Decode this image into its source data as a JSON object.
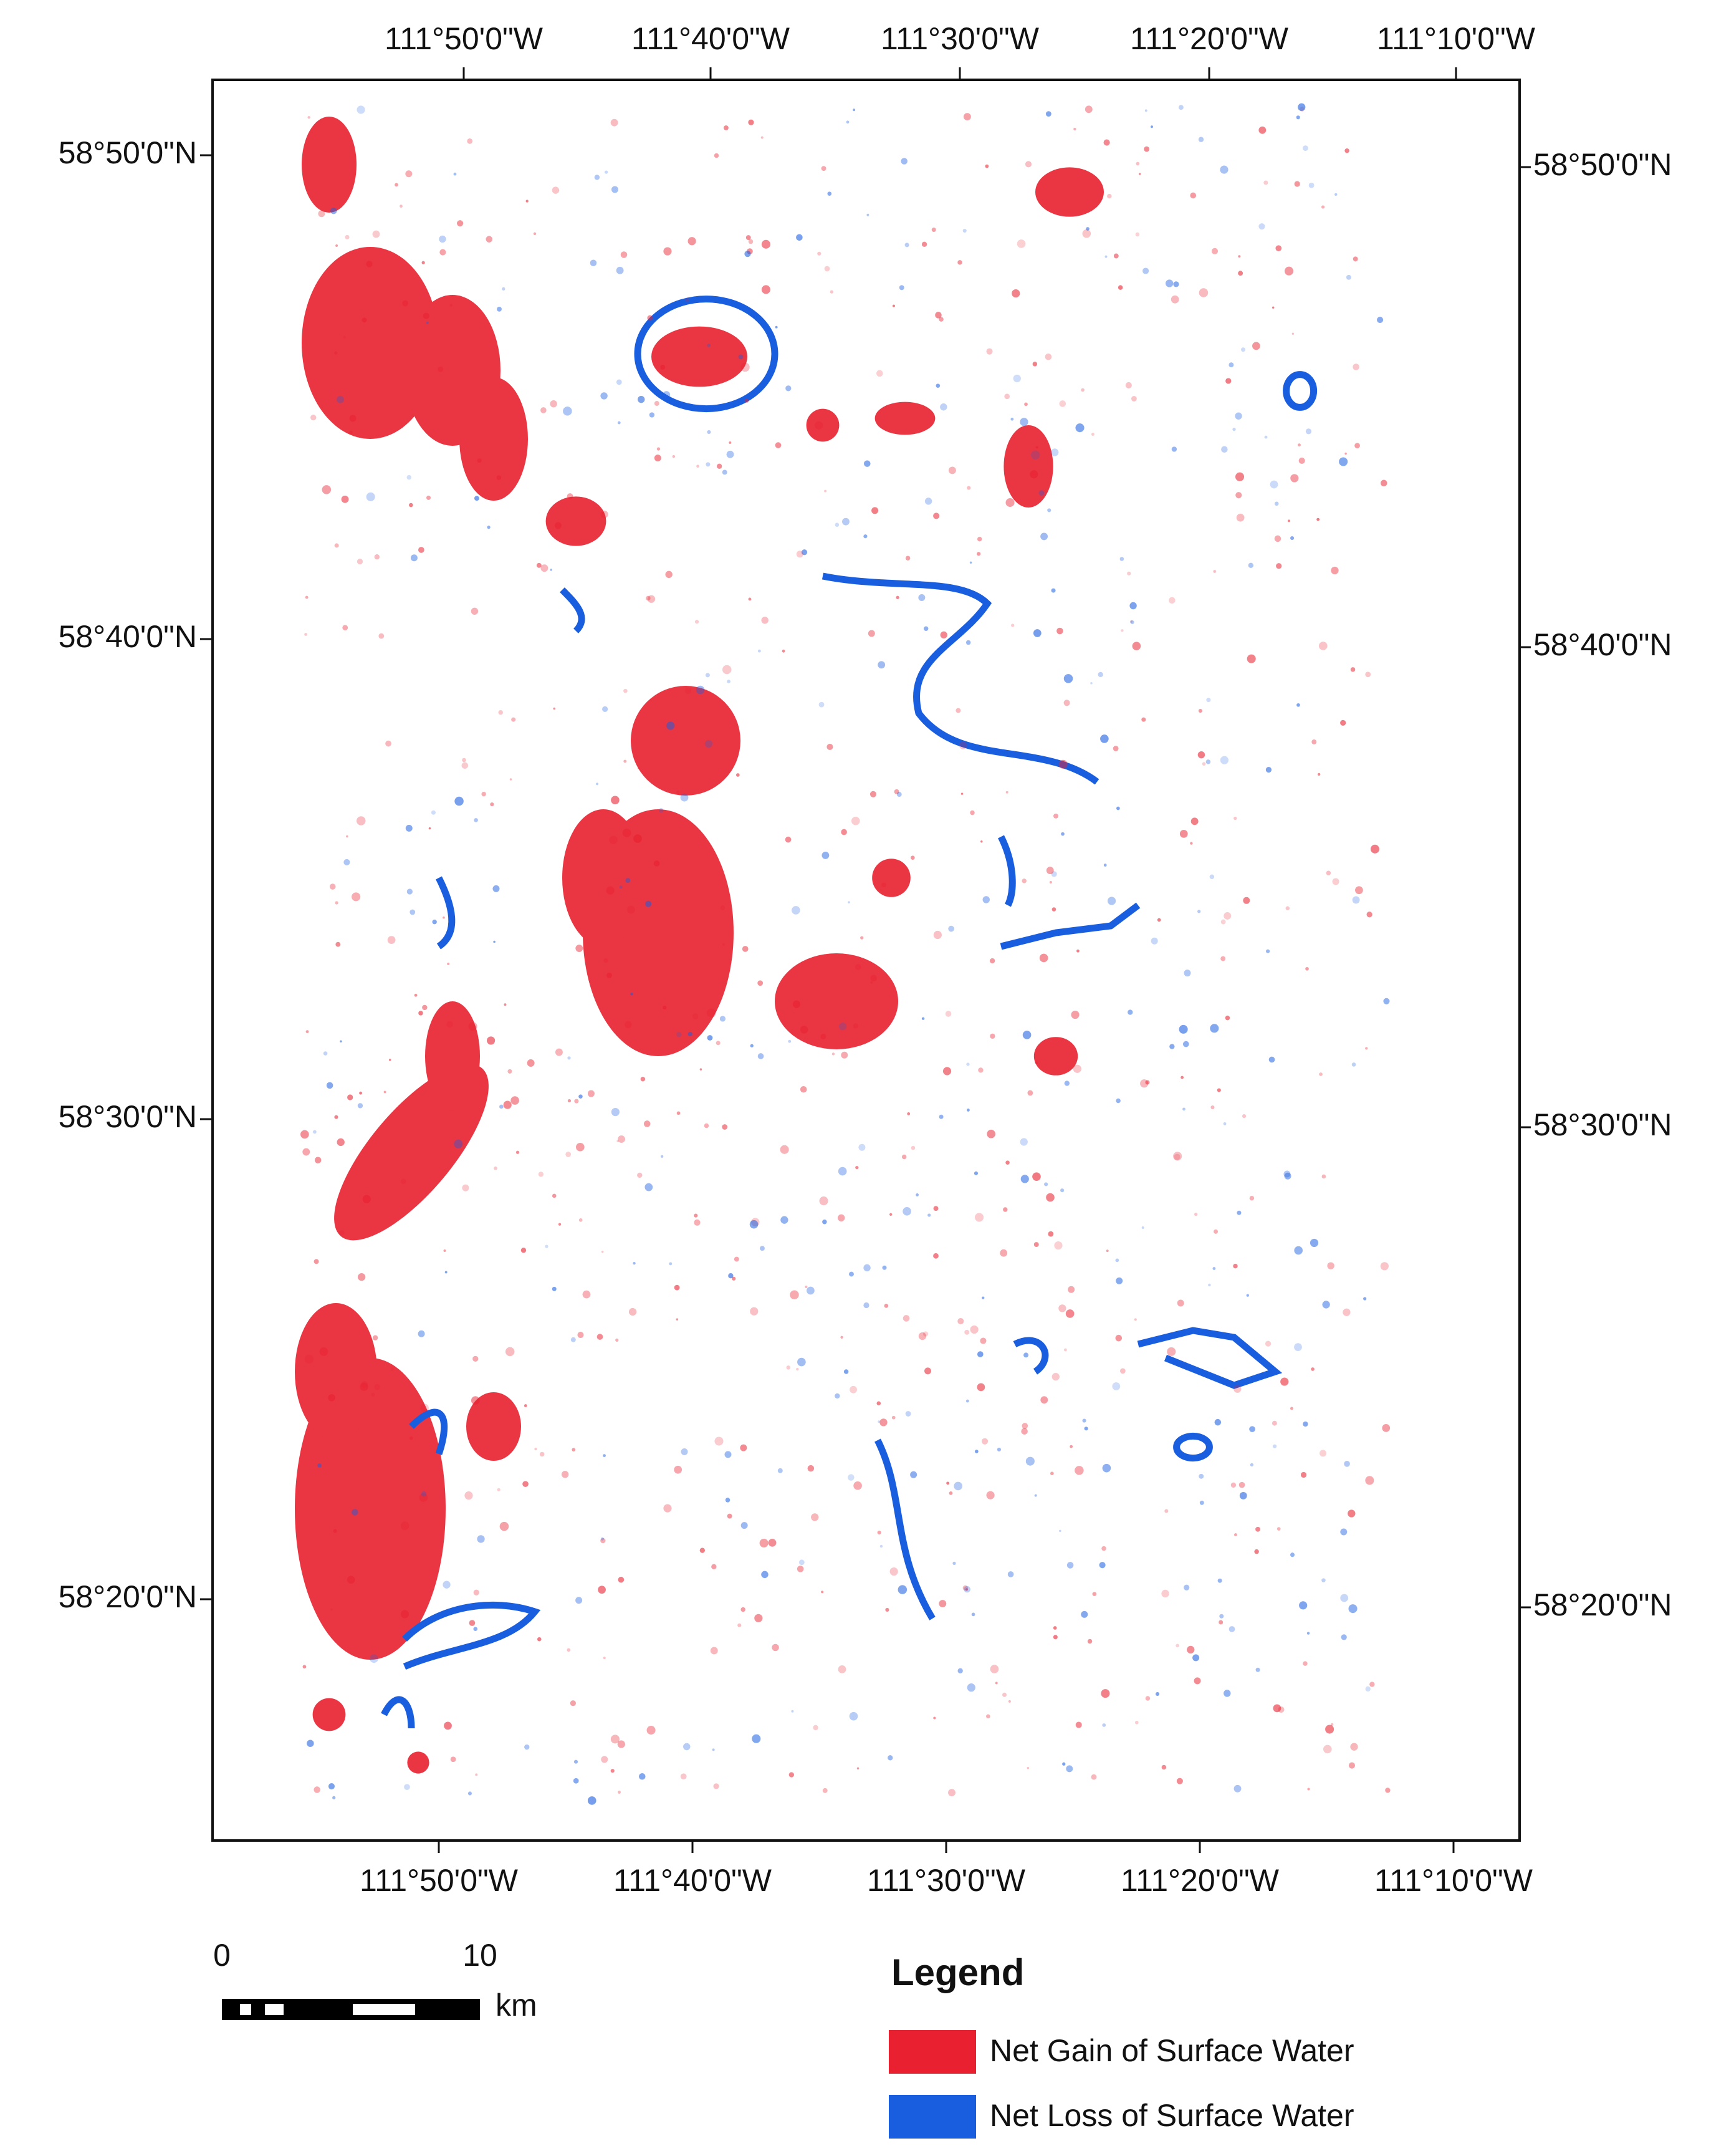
{
  "map": {
    "top_longitude_labels": [
      "111°50'0\"W",
      "111°40'0\"W",
      "111°30'0\"W",
      "111°20'0\"W",
      "111°10'0\"W"
    ],
    "bottom_longitude_labels": [
      "111°50'0\"W",
      "111°40'0\"W",
      "111°30'0\"W",
      "111°20'0\"W",
      "111°10'0\"W"
    ],
    "left_latitude_labels": [
      "58°50'0\"N",
      "58°40'0\"N",
      "58°30'0\"N",
      "58°20'0\"N"
    ],
    "right_latitude_labels": [
      "58°50'0\"N",
      "58°40'0\"N",
      "58°30'0\"N",
      "58°20'0\"N"
    ]
  },
  "scale_bar": {
    "labels": [
      "0",
      "10"
    ],
    "unit": "km"
  },
  "legend": {
    "title": "Legend",
    "items": [
      {
        "label": "Net Gain of Surface Water",
        "color": "#e8202f"
      },
      {
        "label": "Net Loss of Surface Water",
        "color": "#1a5ee0"
      }
    ]
  }
}
